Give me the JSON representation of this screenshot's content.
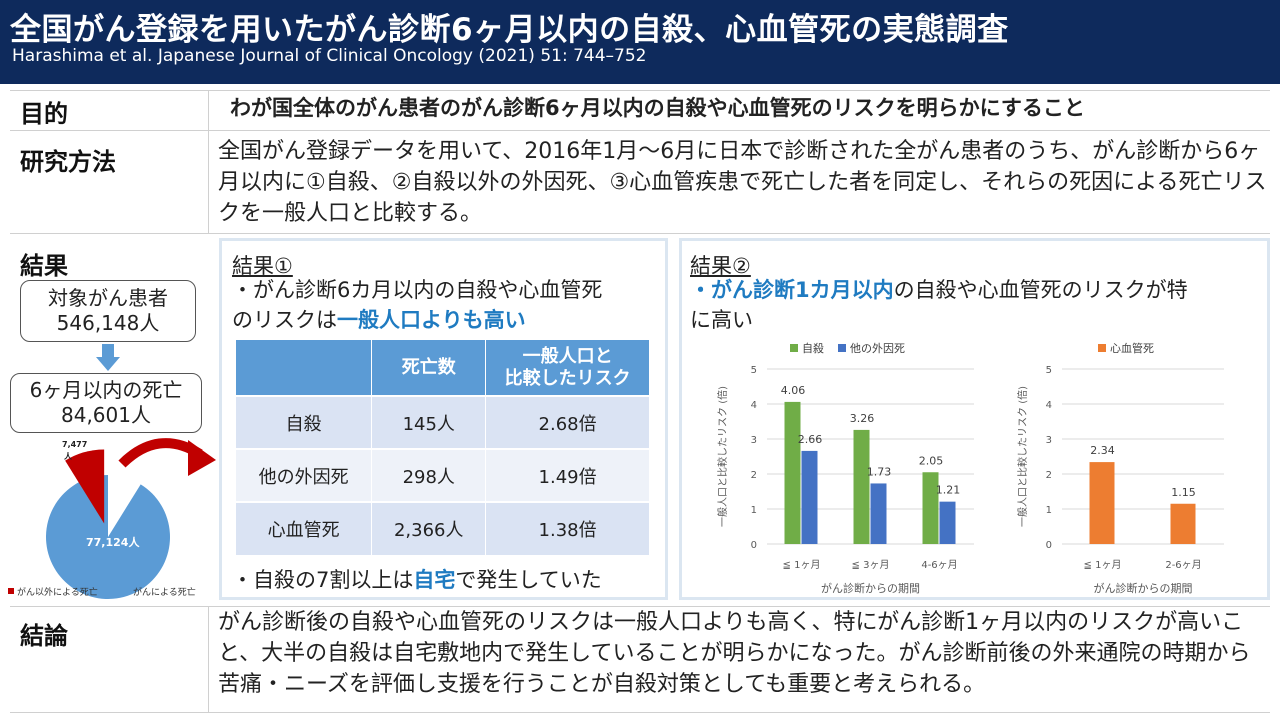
{
  "header": {
    "title": "全国がん登録を用いたがん診断6ヶ月以内の自殺、心血管死の実態調査",
    "citation": "Harashima et al. Japanese Journal of Clinical Oncology (2021) 51: 744–752"
  },
  "sections": {
    "objective_label": "目的",
    "objective_text": "わが国全体のがん患者のがん診断6ヶ月以内の自殺や心血管死のリスクを明らかにすること",
    "methods_label": "研究方法",
    "methods_text": "全国がん登録データを用いて、2016年1月～6月に日本で診断された全がん患者のうち、がん診断から6ヶ月以内に①自殺、②自殺以外の外因死、③心血管疾患で死亡した者を同定し、それらの死因による死亡リスクを一般人口と比較する。",
    "results_label": "結果",
    "conclusion_label": "結論",
    "conclusion_text": "がん診断後の自殺や心血管死のリスクは一般人口よりも高く、特にがん診断1ヶ月以内のリスクが高いこと、大半の自殺は自宅敷地内で発生していることが明らかになった。がん診断前後の外来通院の時期から苦痛・ニーズを評価し支援を行うことが自殺対策としても重要と考えられる。"
  },
  "flow": {
    "target_label": "対象がん患者",
    "target_count": "546,148人",
    "deaths_label": "6ヶ月以内の死亡",
    "deaths_count": "84,601人"
  },
  "pie": {
    "slices": [
      {
        "label": "がん以外による死亡",
        "value": 7477,
        "text": "7,477人",
        "color": "#c00000"
      },
      {
        "label": "がんによる死亡",
        "value": 77124,
        "text": "77,124人",
        "color": "#5b9bd5"
      }
    ]
  },
  "result1": {
    "title": "結果①",
    "line1": "・がん診断6カ月以内の自殺や心血管死",
    "line2_prefix": "のリスクは",
    "line2_highlight": "一般人口よりも高い",
    "footer_prefix": "・自殺の7割以上は",
    "footer_highlight": "自宅",
    "footer_suffix": "で発生していた",
    "table": {
      "headers": [
        "",
        "死亡数",
        "一般人口と\n比較したリスク"
      ],
      "rows": [
        [
          "自殺",
          "145人",
          "2.68倍"
        ],
        [
          "他の外因死",
          "298人",
          "1.49倍"
        ],
        [
          "心血管死",
          "2,366人",
          "1.38倍"
        ]
      ]
    }
  },
  "result2": {
    "title": "結果②",
    "text_prefix": "・",
    "text_highlight": "がん診断1カ月以内",
    "text_suffix1": "の自殺や心血管死のリスクが特",
    "text_suffix2": "に高い"
  },
  "chart_data": [
    {
      "type": "bar",
      "categories": [
        "≦ 1ヶ月",
        "≦ 3ヶ月",
        "4-6ヶ月"
      ],
      "series": [
        {
          "name": "自殺",
          "values": [
            4.06,
            3.26,
            2.05
          ],
          "color": "#70ad47"
        },
        {
          "name": "他の外因死",
          "values": [
            2.66,
            1.73,
            1.21
          ],
          "color": "#4472c4"
        }
      ],
      "xlabel": "がん診断からの期間",
      "ylabel": "一般人口と比較したリスク (倍)",
      "ylim": [
        0,
        5
      ],
      "yticks": [
        "0",
        "1",
        "2",
        "3",
        "4",
        "5"
      ],
      "grid": true,
      "legend": "top"
    },
    {
      "type": "bar",
      "categories": [
        "≦ 1ヶ月",
        "2-6ヶ月"
      ],
      "series": [
        {
          "name": "心血管死",
          "values": [
            2.34,
            1.15
          ],
          "color": "#ed7d31"
        }
      ],
      "xlabel": "がん診断からの期間",
      "ylabel": "一般人口と比較したリスク (倍)",
      "ylim": [
        0,
        5
      ],
      "yticks": [
        "0",
        "1",
        "2",
        "3",
        "4",
        "5"
      ],
      "grid": true,
      "legend": "top"
    }
  ]
}
